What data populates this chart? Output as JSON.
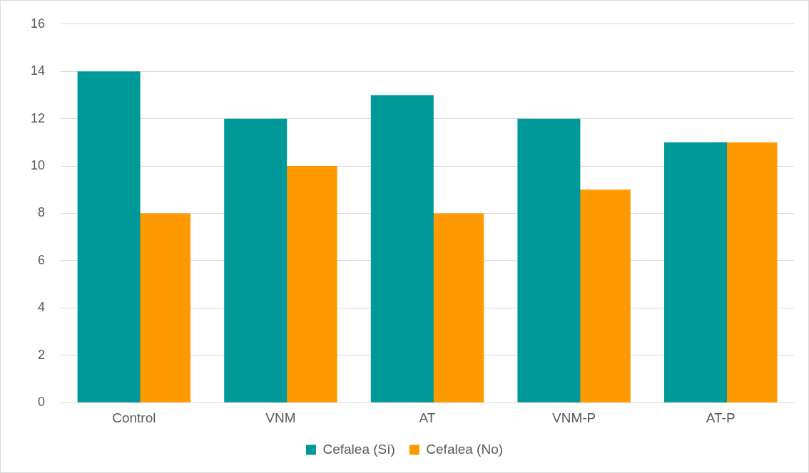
{
  "chart_data": {
    "type": "bar",
    "categories": [
      "Control",
      "VNM",
      "AT",
      "VNM-P",
      "AT-P"
    ],
    "series": [
      {
        "name": "Cefalea (Sí)",
        "color": "#009999",
        "values": [
          14,
          12,
          13,
          12,
          11
        ]
      },
      {
        "name": "Cefalea (No)",
        "color": "#ff9900",
        "values": [
          8,
          10,
          8,
          9,
          11
        ]
      }
    ],
    "ylim": [
      0,
      16
    ],
    "yticks": [
      0,
      2,
      4,
      6,
      8,
      10,
      12,
      14,
      16
    ],
    "grid": "y",
    "legend": "bottom"
  }
}
